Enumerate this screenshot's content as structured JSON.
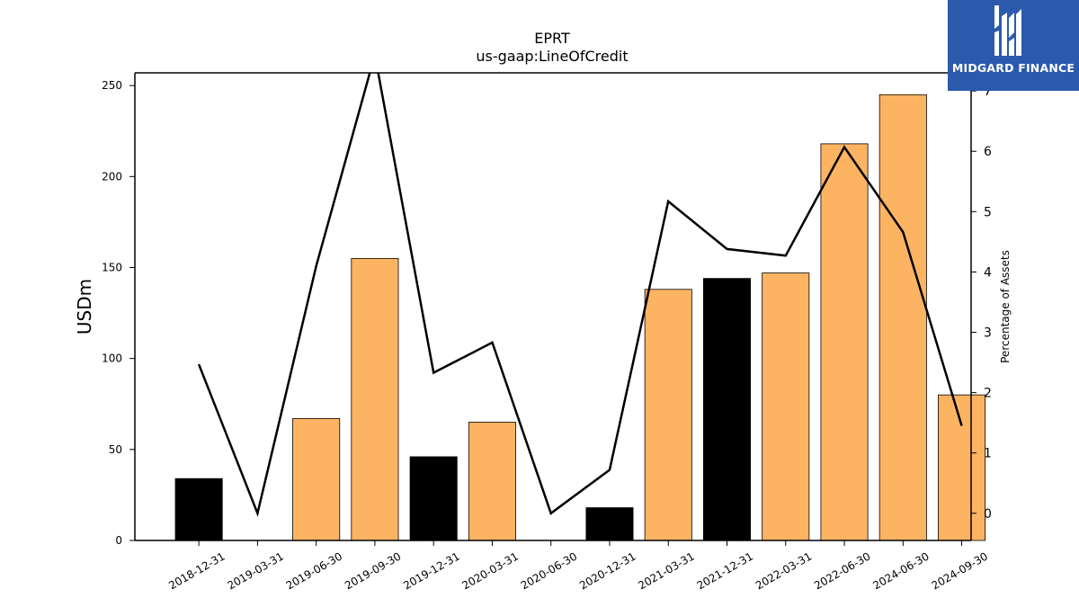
{
  "brand": {
    "name": "MIDGARD FINANCE",
    "logo_color": "#2b5aad"
  },
  "chart_data": {
    "type": "bar",
    "title": "EPRT",
    "subtitle": "us-gaap:LineOfCredit",
    "ylabel": "USDm",
    "y2label": "Percentage of Assets",
    "ylim": [
      0,
      257
    ],
    "y2lim": [
      -0.45,
      7.3
    ],
    "yticks": [
      "0",
      "50",
      "100",
      "150",
      "200",
      "250"
    ],
    "y2ticks": [
      "0",
      "1",
      "2",
      "3",
      "4",
      "5",
      "6",
      "7"
    ],
    "categories": [
      "2018-12-31",
      "2019-03-31",
      "2019-06-30",
      "2019-09-30",
      "2019-12-31",
      "2020-03-31",
      "2020-06-30",
      "2020-12-31",
      "2021-03-31",
      "2021-12-31",
      "2022-03-31",
      "2022-06-30",
      "2024-06-30",
      "2024-09-30"
    ],
    "series": [
      {
        "type": "bar",
        "values": [
          34,
          0,
          67,
          155,
          46,
          65,
          0,
          18,
          138,
          144,
          147,
          218,
          245,
          80
        ],
        "bar_colors": [
          "#000000",
          "#000000",
          "#fdb462",
          "#fdb462",
          "#000000",
          "#fdb462",
          "#000000",
          "#000000",
          "#fdb462",
          "#000000",
          "#fdb462",
          "#fdb462",
          "#fdb462",
          "#fdb462"
        ]
      },
      {
        "type": "line",
        "axis": "right",
        "values": [
          2.47,
          0.0,
          4.1,
          7.6,
          2.33,
          2.83,
          0.0,
          0.72,
          5.17,
          4.38,
          4.27,
          6.07,
          4.66,
          1.45
        ],
        "color": "#000000"
      }
    ],
    "grid": false,
    "legend": "none"
  }
}
